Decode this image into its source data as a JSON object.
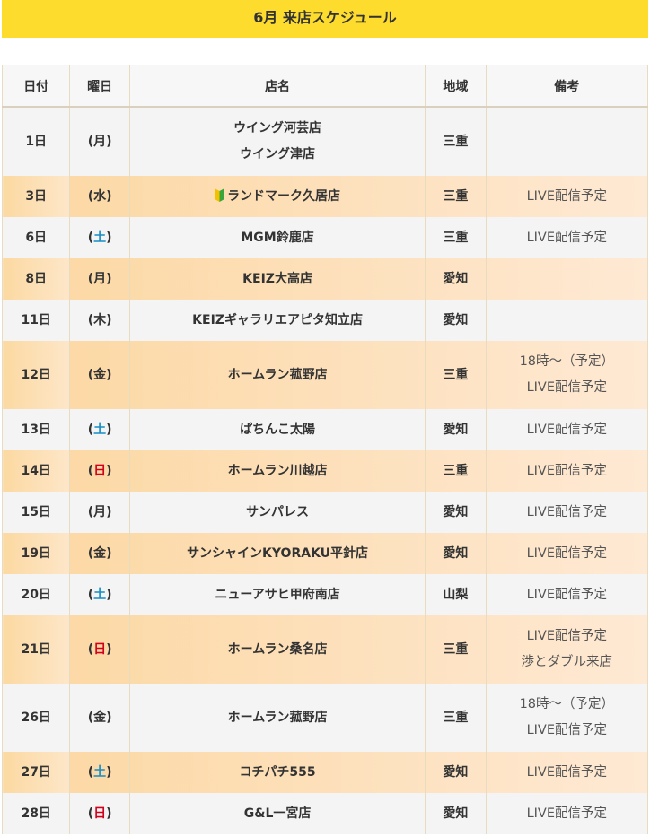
{
  "header": {
    "title": "6月 来店スケジュール"
  },
  "table": {
    "columns": [
      "日付",
      "曜日",
      "店名",
      "地域",
      "備考"
    ],
    "rows": [
      {
        "date": "1日",
        "weekday": "(月)",
        "stores": [
          "ウイング河芸店",
          "ウイング津店"
        ],
        "region": "三重",
        "notes": []
      },
      {
        "date": "3日",
        "weekday": "(水)",
        "stores": [
          "ランドマーク久居店"
        ],
        "beginner_mark": true,
        "region": "三重",
        "notes": [
          "LIVE配信予定"
        ]
      },
      {
        "date": "6日",
        "weekday": "(土)",
        "weekday_color": "#1a8fc4",
        "stores": [
          "MGM鈴鹿店"
        ],
        "region": "三重",
        "notes": [
          "LIVE配信予定"
        ]
      },
      {
        "date": "8日",
        "weekday": "(月)",
        "stores": [
          "KEIZ大高店"
        ],
        "region": "愛知",
        "notes": []
      },
      {
        "date": "11日",
        "weekday": "(木)",
        "stores": [
          "KEIZギャラリエアピタ知立店"
        ],
        "region": "愛知",
        "notes": []
      },
      {
        "date": "12日",
        "weekday": "(金)",
        "stores": [
          "ホームラン菰野店"
        ],
        "region": "三重",
        "notes": [
          "18時～（予定）",
          "LIVE配信予定"
        ]
      },
      {
        "date": "13日",
        "weekday": "(土)",
        "weekday_color": "#1a8fc4",
        "stores": [
          "ぱちんこ太陽"
        ],
        "region": "愛知",
        "notes": [
          "LIVE配信予定"
        ]
      },
      {
        "date": "14日",
        "weekday": "(日)",
        "weekday_color": "#d0021b",
        "stores": [
          "ホームラン川越店"
        ],
        "region": "三重",
        "notes": [
          "LIVE配信予定"
        ]
      },
      {
        "date": "15日",
        "weekday": "(月)",
        "stores": [
          "サンパレス"
        ],
        "region": "愛知",
        "notes": [
          "LIVE配信予定"
        ]
      },
      {
        "date": "19日",
        "weekday": "(金)",
        "stores": [
          "サンシャインKYORAKU平針店"
        ],
        "region": "愛知",
        "notes": [
          "LIVE配信予定"
        ]
      },
      {
        "date": "20日",
        "weekday": "(土)",
        "weekday_color": "#1a8fc4",
        "stores": [
          "ニューアサヒ甲府南店"
        ],
        "region": "山梨",
        "notes": [
          "LIVE配信予定"
        ]
      },
      {
        "date": "21日",
        "weekday": "(日)",
        "weekday_color": "#d0021b",
        "stores": [
          "ホームラン桑名店"
        ],
        "region": "三重",
        "notes": [
          "LIVE配信予定",
          "渉とダブル来店"
        ]
      },
      {
        "date": "26日",
        "weekday": "(金)",
        "stores": [
          "ホームラン菰野店"
        ],
        "region": "三重",
        "notes": [
          "18時～（予定）",
          "LIVE配信予定"
        ]
      },
      {
        "date": "27日",
        "weekday": "(土)",
        "weekday_color": "#1a8fc4",
        "stores": [
          "コチパチ555"
        ],
        "region": "愛知",
        "notes": [
          "LIVE配信予定"
        ]
      },
      {
        "date": "28日",
        "weekday": "(日)",
        "weekday_color": "#d0021b",
        "stores": [
          "G&L一宮店"
        ],
        "region": "愛知",
        "notes": [
          "LIVE配信予定"
        ]
      }
    ]
  }
}
